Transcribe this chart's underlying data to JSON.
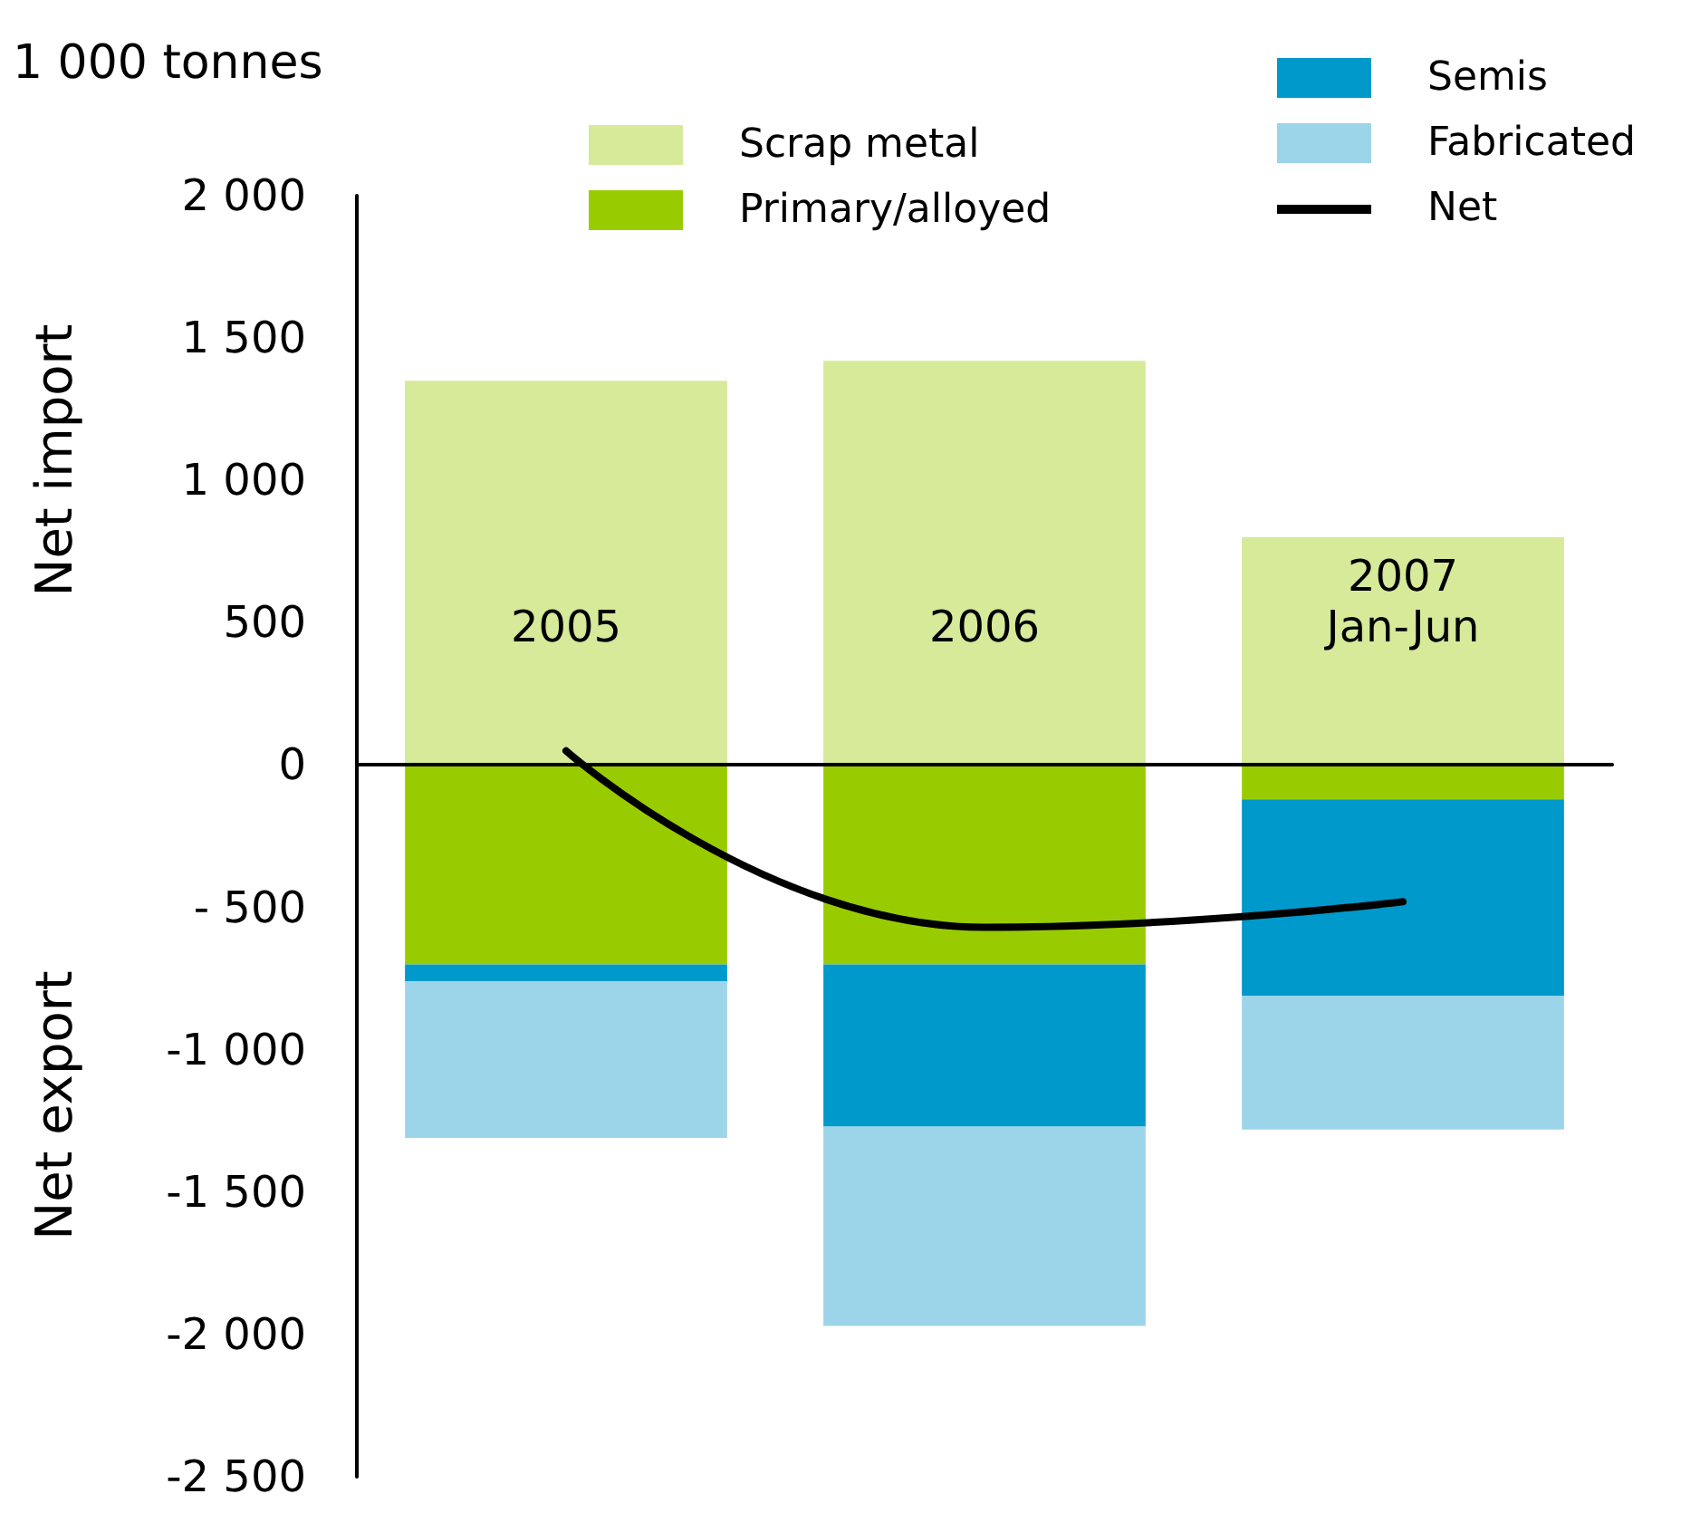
{
  "chart_data": {
    "type": "bar",
    "stacked": true,
    "ylabel": "1 000 tonnes",
    "annotations": [
      "Net import",
      "Net export"
    ],
    "categories": [
      "2005",
      "2006",
      "2007\nJan-Jun"
    ],
    "series": [
      {
        "name": "Scrap metal",
        "color": "#d6ea9a",
        "values": [
          1350,
          1420,
          800
        ]
      },
      {
        "name": "Primary/alloyed",
        "color": "#99cc00",
        "values": [
          -700,
          -700,
          -120
        ]
      },
      {
        "name": "Semis",
        "color": "#0099cc",
        "values": [
          -60,
          -570,
          -690
        ]
      },
      {
        "name": "Fabricated",
        "color": "#9cd5ea",
        "values": [
          -550,
          -700,
          -470
        ]
      },
      {
        "name": "Net",
        "type": "line",
        "color": "#000000",
        "values": [
          50,
          -570,
          -480
        ]
      }
    ],
    "ylim": [
      -2500,
      2000
    ],
    "yticks": [
      {
        "value": -2500,
        "label": "-2 500"
      },
      {
        "value": -2000,
        "label": "-2 000"
      },
      {
        "value": -1500,
        "label": "-1 500"
      },
      {
        "value": -1000,
        "label": "-1 000"
      },
      {
        "value": -500,
        "label": "- 500"
      },
      0,
      500,
      {
        "value": 1000,
        "label": "1 000"
      },
      {
        "value": 1500,
        "label": "1 500"
      },
      {
        "value": 2000,
        "label": "2 000"
      }
    ],
    "grid": false,
    "legend": "top",
    "marker": "none"
  }
}
